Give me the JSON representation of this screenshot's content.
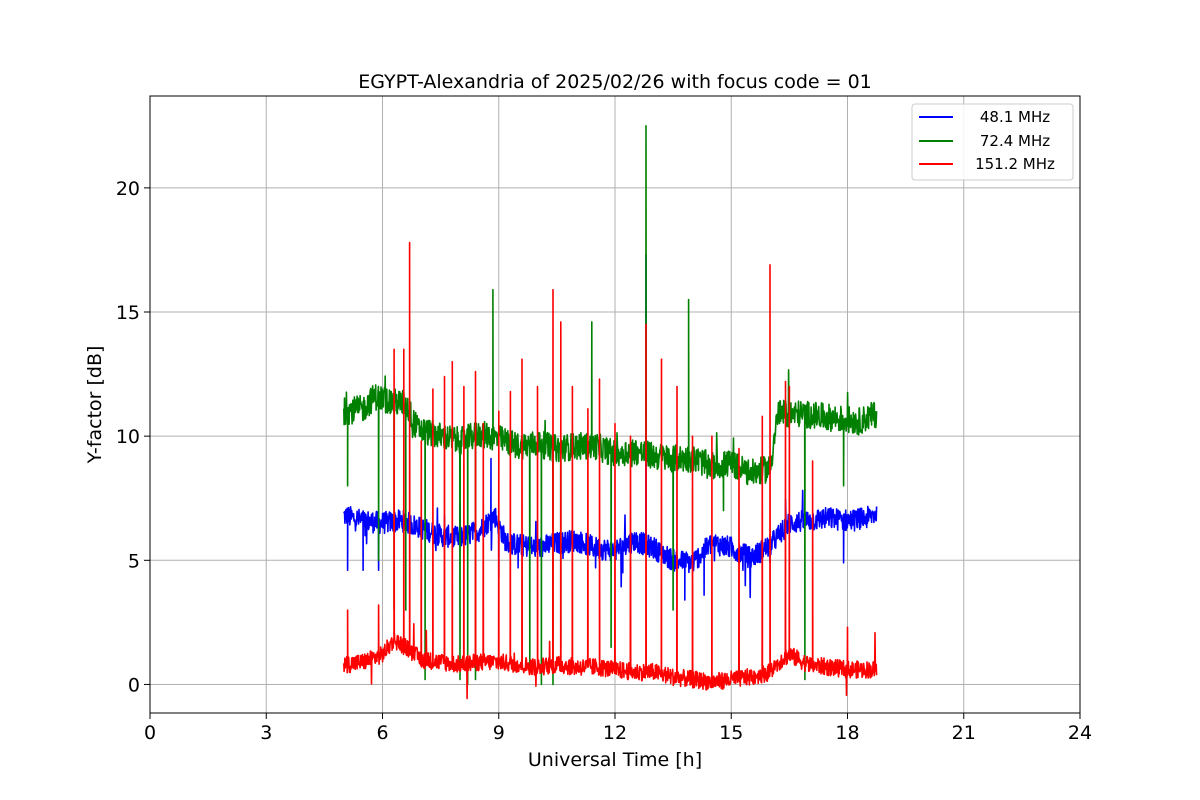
{
  "chart_data": {
    "type": "line",
    "title": "EGYPT-Alexandria of 2025/02/26 with focus code = 01",
    "xlabel": "Universal Time [h]",
    "ylabel": "Y-factor [dB]",
    "xlim": [
      0,
      24
    ],
    "ylim": [
      -1.15,
      23.7
    ],
    "x_ticks": [
      0,
      3,
      6,
      9,
      12,
      15,
      18,
      21,
      24
    ],
    "y_ticks": [
      0,
      5,
      10,
      15,
      20
    ],
    "grid": true,
    "legend_position": "top-right",
    "x_range_of_data": [
      5.0,
      18.75
    ],
    "series": [
      {
        "name": "48.1 MHz",
        "color": "#0000ff",
        "baseline": [
          [
            5.0,
            6.8
          ],
          [
            5.5,
            6.6
          ],
          [
            6.0,
            6.5
          ],
          [
            6.5,
            6.6
          ],
          [
            7.0,
            6.3
          ],
          [
            7.5,
            6.0
          ],
          [
            8.0,
            5.9
          ],
          [
            8.5,
            6.2
          ],
          [
            8.9,
            6.8
          ],
          [
            9.2,
            5.7
          ],
          [
            9.6,
            5.6
          ],
          [
            10.0,
            5.5
          ],
          [
            10.5,
            5.7
          ],
          [
            11.0,
            5.8
          ],
          [
            11.5,
            5.5
          ],
          [
            12.0,
            5.4
          ],
          [
            12.5,
            5.8
          ],
          [
            13.0,
            5.5
          ],
          [
            13.5,
            5.0
          ],
          [
            14.0,
            4.9
          ],
          [
            14.5,
            5.7
          ],
          [
            15.0,
            5.5
          ],
          [
            15.5,
            5.1
          ],
          [
            16.0,
            5.6
          ],
          [
            16.5,
            6.5
          ],
          [
            17.0,
            6.6
          ],
          [
            17.5,
            6.7
          ],
          [
            18.0,
            6.6
          ],
          [
            18.5,
            6.7
          ],
          [
            18.75,
            6.9
          ]
        ],
        "spikes": [
          [
            5.1,
            4.6
          ],
          [
            5.5,
            4.6
          ],
          [
            5.9,
            4.6
          ],
          [
            7.6,
            6.8
          ],
          [
            8.0,
            7.3
          ],
          [
            8.8,
            9.1
          ],
          [
            9.0,
            4.3
          ],
          [
            9.5,
            4.7
          ],
          [
            11.5,
            4.7
          ],
          [
            12.2,
            4.5
          ],
          [
            13.8,
            3.4
          ],
          [
            14.3,
            3.6
          ],
          [
            15.3,
            4.6
          ],
          [
            16.0,
            4.9
          ],
          [
            17.9,
            4.9
          ],
          [
            12.8,
            17.3
          ]
        ]
      },
      {
        "name": "72.4 MHz",
        "color": "#008000",
        "baseline": [
          [
            5.0,
            11.0
          ],
          [
            5.5,
            11.1
          ],
          [
            5.8,
            11.6
          ],
          [
            6.2,
            11.4
          ],
          [
            6.6,
            11.3
          ],
          [
            6.9,
            10.3
          ],
          [
            7.5,
            10.0
          ],
          [
            8.0,
            9.8
          ],
          [
            8.5,
            10.1
          ],
          [
            9.0,
            9.9
          ],
          [
            9.5,
            9.6
          ],
          [
            10.0,
            9.7
          ],
          [
            10.5,
            9.5
          ],
          [
            11.0,
            9.6
          ],
          [
            11.5,
            9.6
          ],
          [
            12.0,
            9.3
          ],
          [
            12.5,
            9.4
          ],
          [
            13.0,
            9.2
          ],
          [
            13.5,
            9.1
          ],
          [
            14.0,
            9.1
          ],
          [
            14.5,
            8.8
          ],
          [
            15.0,
            8.9
          ],
          [
            15.5,
            8.5
          ],
          [
            16.0,
            8.7
          ],
          [
            16.2,
            10.9
          ],
          [
            16.8,
            10.9
          ],
          [
            17.3,
            10.8
          ],
          [
            17.8,
            10.7
          ],
          [
            18.3,
            10.6
          ],
          [
            18.75,
            10.9
          ]
        ],
        "spikes": [
          [
            5.1,
            8.0
          ],
          [
            5.9,
            5.0
          ],
          [
            6.3,
            3.0
          ],
          [
            6.6,
            3.0
          ],
          [
            7.1,
            0.2
          ],
          [
            8.0,
            0.2
          ],
          [
            8.2,
            0.0
          ],
          [
            8.4,
            0.2
          ],
          [
            8.85,
            15.9
          ],
          [
            9.8,
            0.5
          ],
          [
            10.1,
            0.0
          ],
          [
            10.4,
            0.0
          ],
          [
            10.6,
            1.5
          ],
          [
            11.4,
            14.6
          ],
          [
            11.9,
            1.5
          ],
          [
            12.8,
            22.5
          ],
          [
            13.5,
            3.0
          ],
          [
            13.9,
            15.5
          ],
          [
            14.8,
            7.0
          ],
          [
            16.9,
            0.2
          ],
          [
            17.9,
            8.0
          ]
        ]
      },
      {
        "name": "151.2 MHz",
        "color": "#ff0000",
        "baseline": [
          [
            5.0,
            0.8
          ],
          [
            5.5,
            0.9
          ],
          [
            6.0,
            1.2
          ],
          [
            6.3,
            1.8
          ],
          [
            6.6,
            1.5
          ],
          [
            7.0,
            1.0
          ],
          [
            7.5,
            0.9
          ],
          [
            8.0,
            0.8
          ],
          [
            8.5,
            0.9
          ],
          [
            9.0,
            0.9
          ],
          [
            9.5,
            0.8
          ],
          [
            10.0,
            0.7
          ],
          [
            10.5,
            0.8
          ],
          [
            11.0,
            0.7
          ],
          [
            11.5,
            0.7
          ],
          [
            12.0,
            0.6
          ],
          [
            12.5,
            0.5
          ],
          [
            13.0,
            0.5
          ],
          [
            13.5,
            0.3
          ],
          [
            14.0,
            0.2
          ],
          [
            14.5,
            0.1
          ],
          [
            15.0,
            0.2
          ],
          [
            15.5,
            0.3
          ],
          [
            16.0,
            0.5
          ],
          [
            16.3,
            1.0
          ],
          [
            16.5,
            1.2
          ],
          [
            17.0,
            0.8
          ],
          [
            17.5,
            0.7
          ],
          [
            18.0,
            0.6
          ],
          [
            18.5,
            0.6
          ],
          [
            18.75,
            0.6
          ]
        ],
        "spikes": [
          [
            5.1,
            3.0
          ],
          [
            5.9,
            3.2
          ],
          [
            6.3,
            13.5
          ],
          [
            6.55,
            13.5
          ],
          [
            6.7,
            17.8
          ],
          [
            7.0,
            9.8
          ],
          [
            7.3,
            11.9
          ],
          [
            7.6,
            12.4
          ],
          [
            7.8,
            13.0
          ],
          [
            8.1,
            12.0
          ],
          [
            8.4,
            12.6
          ],
          [
            8.6,
            10.5
          ],
          [
            9.0,
            11.0
          ],
          [
            9.3,
            11.8
          ],
          [
            9.6,
            13.1
          ],
          [
            10.0,
            12.0
          ],
          [
            10.4,
            15.9
          ],
          [
            10.6,
            14.6
          ],
          [
            10.9,
            12.0
          ],
          [
            11.3,
            11.1
          ],
          [
            11.6,
            12.3
          ],
          [
            12.0,
            10.5
          ],
          [
            12.4,
            10.0
          ],
          [
            12.8,
            14.5
          ],
          [
            13.2,
            13.1
          ],
          [
            13.6,
            12.0
          ],
          [
            14.0,
            10.0
          ],
          [
            14.5,
            10.0
          ],
          [
            15.2,
            9.5
          ],
          [
            15.8,
            10.8
          ],
          [
            16.0,
            16.9
          ],
          [
            16.4,
            12.2
          ],
          [
            16.5,
            12.0
          ],
          [
            17.1,
            9.0
          ],
          [
            18.0,
            2.3
          ]
        ]
      }
    ]
  }
}
